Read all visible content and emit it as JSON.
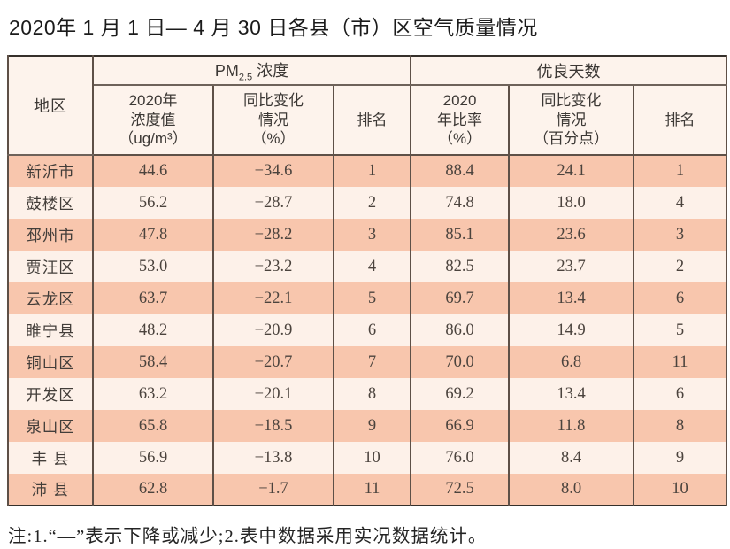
{
  "title": "2020年 1 月 1 日— 4 月 30 日各县（市）区空气质量情况",
  "table": {
    "region_header": "地区",
    "groups": {
      "pm25": {
        "prefix": "PM",
        "sub": "2.5",
        "suffix": " 浓度"
      },
      "good_days": {
        "label": "优良天数"
      }
    },
    "subheaders": [
      "2020年\n浓度值\n（ug/m³）",
      "同比变化\n情况\n（%）",
      "排名",
      "2020\n年比率\n（%）",
      "同比变化\n情况\n（百分点）",
      "排名"
    ],
    "rows": [
      {
        "region": "新沂市",
        "pm_value": "44.6",
        "pm_change": "−34.6",
        "pm_rank": "1",
        "good_rate": "88.4",
        "good_change": "24.1",
        "good_rank": "1"
      },
      {
        "region": "鼓楼区",
        "pm_value": "56.2",
        "pm_change": "−28.7",
        "pm_rank": "2",
        "good_rate": "74.8",
        "good_change": "18.0",
        "good_rank": "4"
      },
      {
        "region": "邳州市",
        "pm_value": "47.8",
        "pm_change": "−28.2",
        "pm_rank": "3",
        "good_rate": "85.1",
        "good_change": "23.6",
        "good_rank": "3"
      },
      {
        "region": "贾汪区",
        "pm_value": "53.0",
        "pm_change": "−23.2",
        "pm_rank": "4",
        "good_rate": "82.5",
        "good_change": "23.7",
        "good_rank": "2"
      },
      {
        "region": "云龙区",
        "pm_value": "63.7",
        "pm_change": "−22.1",
        "pm_rank": "5",
        "good_rate": "69.7",
        "good_change": "13.4",
        "good_rank": "6"
      },
      {
        "region": "睢宁县",
        "pm_value": "48.2",
        "pm_change": "−20.9",
        "pm_rank": "6",
        "good_rate": "86.0",
        "good_change": "14.9",
        "good_rank": "5"
      },
      {
        "region": "铜山区",
        "pm_value": "58.4",
        "pm_change": "−20.7",
        "pm_rank": "7",
        "good_rate": "70.0",
        "good_change": "6.8",
        "good_rank": "11"
      },
      {
        "region": "开发区",
        "pm_value": "63.2",
        "pm_change": "−20.1",
        "pm_rank": "8",
        "good_rate": "69.2",
        "good_change": "13.4",
        "good_rank": "6"
      },
      {
        "region": "泉山区",
        "pm_value": "65.8",
        "pm_change": "−18.5",
        "pm_rank": "9",
        "good_rate": "66.9",
        "good_change": "11.8",
        "good_rank": "8"
      },
      {
        "region": "丰 县",
        "pm_value": "56.9",
        "pm_change": "−13.8",
        "pm_rank": "10",
        "good_rate": "76.0",
        "good_change": "8.4",
        "good_rank": "9"
      },
      {
        "region": "沛 县",
        "pm_value": "62.8",
        "pm_change": "−1.7",
        "pm_rank": "11",
        "good_rate": "72.5",
        "good_change": "8.0",
        "good_rank": "10"
      }
    ]
  },
  "footnote": "注:1.“—”表示下降或减少;2.表中数据采用实况数据统计。",
  "colors": {
    "row_salmon": "#f8c6ad",
    "row_light": "#fdf1e9",
    "header_bg": "#fdf3ec",
    "border_inner": "#5e5047",
    "border_outer": "#35302b",
    "title_color": "#1b1b1b",
    "note_color": "#242424"
  }
}
